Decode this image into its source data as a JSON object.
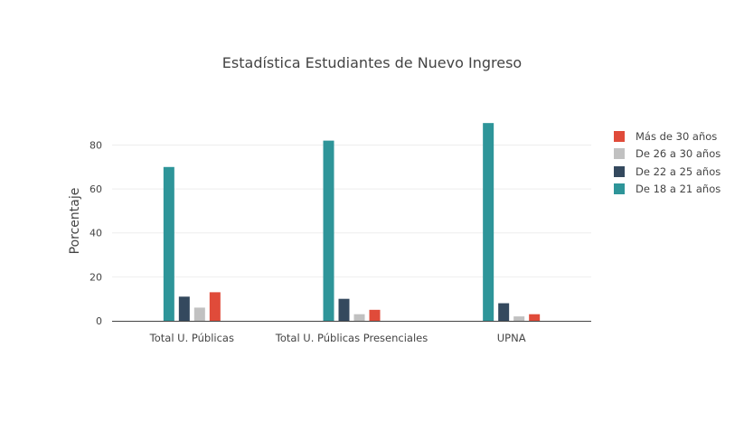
{
  "chart_data": {
    "type": "bar",
    "title": "Estadística Estudiantes de Nuevo Ingreso",
    "xlabel": "",
    "ylabel": "Porcentaje",
    "categories": [
      "Total U. Públicas",
      "Total U. Públicas Presenciales",
      "UPNA"
    ],
    "ylim": [
      0,
      95
    ],
    "yticks": [
      0,
      20,
      40,
      60,
      80
    ],
    "grid": true,
    "legend_position": "right",
    "series": [
      {
        "name": "De 18 a 21 años",
        "color": "#2E9599",
        "values": [
          70,
          82,
          90
        ]
      },
      {
        "name": "De 22 a 25 años",
        "color": "#34495E",
        "values": [
          11,
          10,
          8
        ]
      },
      {
        "name": "De 26 a 30 años",
        "color": "#C1C1C1",
        "values": [
          6,
          3,
          2
        ]
      },
      {
        "name": "Más de 30 años",
        "color": "#E04B3A",
        "values": [
          13,
          5,
          3
        ]
      }
    ],
    "legend_order": [
      "Más de 30 años",
      "De 26 a 30 años",
      "De 22 a 25 años",
      "De 18 a 21 años"
    ]
  }
}
